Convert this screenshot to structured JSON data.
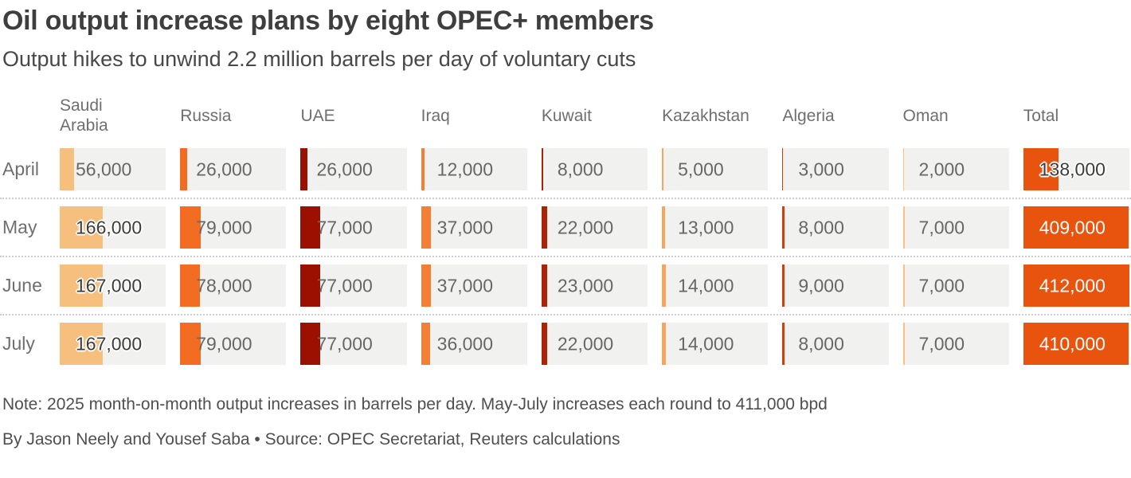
{
  "title": "Oil output increase plans by eight OPEC+ members",
  "subtitle": "Output hikes to unwind 2.2 million barrels per day of voluntary cuts",
  "note": "Note: 2025 month-on-month output increases in barrels per day. May-July increases each round to 411,000 bpd",
  "byline": "By Jason Neely and Yousef Saba • Source: OPEC Secretariat, Reuters calculations",
  "colors": {
    "cell_background": "#f1f1ef",
    "separator_dots": "#cccccc",
    "total_fill": "#e8530e"
  },
  "chart_data": {
    "type": "bar",
    "title": "Oil output increase plans by eight OPEC+ members",
    "subtitle": "Output hikes to unwind 2.2 million barrels per day of voluntary cuts",
    "unit": "barrels per day",
    "max_value": 412000,
    "columns": [
      {
        "key": "saudi-arabia",
        "name": "Saudi Arabia",
        "label": "Saudi\nArabia",
        "color": "#f7bf7d"
      },
      {
        "key": "russia",
        "name": "Russia",
        "label": "Russia",
        "color": "#f26c21"
      },
      {
        "key": "uae",
        "name": "UAE",
        "label": "UAE",
        "color": "#9b1000"
      },
      {
        "key": "iraq",
        "name": "Iraq",
        "label": "Iraq",
        "color": "#f57e35"
      },
      {
        "key": "kuwait",
        "name": "Kuwait",
        "label": "Kuwait",
        "color": "#aa2506"
      },
      {
        "key": "kazakhstan",
        "name": "Kazakhstan",
        "label": "Kazakhstan",
        "color": "#f9a45c"
      },
      {
        "key": "algeria",
        "name": "Algeria",
        "label": "Algeria",
        "color": "#cc4206"
      },
      {
        "key": "oman",
        "name": "Oman",
        "label": "Oman",
        "color": "#fbc284"
      },
      {
        "key": "total",
        "name": "Total",
        "label": "Total",
        "color": "#e8530e"
      }
    ],
    "rows": [
      {
        "label": "April",
        "values": [
          56000,
          26000,
          26000,
          12000,
          8000,
          5000,
          3000,
          2000,
          138000
        ]
      },
      {
        "label": "May",
        "values": [
          166000,
          79000,
          77000,
          37000,
          22000,
          13000,
          8000,
          7000,
          409000
        ]
      },
      {
        "label": "June",
        "values": [
          167000,
          78000,
          77000,
          37000,
          23000,
          14000,
          9000,
          7000,
          412000
        ]
      },
      {
        "label": "July",
        "values": [
          167000,
          79000,
          77000,
          36000,
          22000,
          14000,
          8000,
          7000,
          410000
        ]
      }
    ]
  }
}
